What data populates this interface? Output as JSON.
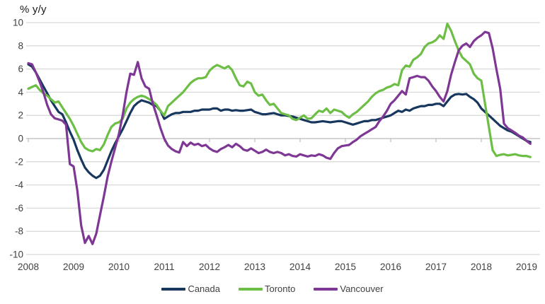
{
  "chart_data": {
    "type": "line",
    "title": "",
    "y_axis_title": "% y/y",
    "frequency": "monthly",
    "start_month": "2008-01",
    "end_month": "2019-02",
    "x_tick_labels": [
      "2008",
      "2009",
      "2010",
      "2011",
      "2012",
      "2013",
      "2014",
      "2015",
      "2016",
      "2017",
      "2018",
      "2019"
    ],
    "y_ticks": [
      10,
      8,
      6,
      4,
      2,
      0,
      -2,
      -4,
      -6,
      -8,
      -10
    ],
    "ylim": [
      -10,
      10
    ],
    "grid": "horizontal",
    "legend_position": "bottom",
    "colors": {
      "grid": "#d9d9d9",
      "axis": "#bfbfbf",
      "tick_text": "#404040",
      "title_text": "#1a1a1a"
    },
    "series": [
      {
        "name": "Canada",
        "color": "#17375e",
        "values": [
          6.4,
          6.2,
          5.7,
          5.1,
          4.5,
          3.9,
          3.3,
          2.8,
          2.3,
          2.1,
          1.4,
          0.6,
          -0.1,
          -1.0,
          -1.8,
          -2.5,
          -2.9,
          -3.2,
          -3.4,
          -3.2,
          -2.7,
          -1.9,
          -1.1,
          -0.4,
          0.2,
          0.8,
          1.5,
          2.2,
          2.8,
          3.1,
          3.3,
          3.2,
          3.1,
          2.9,
          2.8,
          2.4,
          1.7,
          1.9,
          2.1,
          2.2,
          2.2,
          2.3,
          2.3,
          2.3,
          2.4,
          2.4,
          2.5,
          2.5,
          2.5,
          2.6,
          2.6,
          2.4,
          2.5,
          2.5,
          2.4,
          2.45,
          2.4,
          2.4,
          2.45,
          2.5,
          2.3,
          2.2,
          2.1,
          2.1,
          2.15,
          2.2,
          2.1,
          2.0,
          2.0,
          1.95,
          1.9,
          1.8,
          1.7,
          1.6,
          1.5,
          1.4,
          1.4,
          1.45,
          1.5,
          1.45,
          1.4,
          1.45,
          1.5,
          1.5,
          1.4,
          1.3,
          1.2,
          1.3,
          1.4,
          1.5,
          1.5,
          1.6,
          1.6,
          1.7,
          1.8,
          1.9,
          2.0,
          2.2,
          2.4,
          2.3,
          2.5,
          2.4,
          2.6,
          2.7,
          2.8,
          2.8,
          2.9,
          2.9,
          3.0,
          3.0,
          2.8,
          3.2,
          3.6,
          3.8,
          3.85,
          3.8,
          3.85,
          3.6,
          3.4,
          3.1,
          2.6,
          2.3,
          2.0,
          1.7,
          1.4,
          1.1,
          0.9,
          0.7,
          0.6,
          0.4,
          0.2,
          0.0,
          -0.2,
          -0.3
        ]
      },
      {
        "name": "Toronto",
        "color": "#6cbe45",
        "values": [
          4.3,
          4.45,
          4.6,
          4.2,
          3.9,
          3.7,
          3.4,
          3.1,
          3.2,
          2.7,
          2.2,
          1.7,
          1.1,
          0.4,
          -0.3,
          -0.8,
          -1.0,
          -1.1,
          -0.9,
          -1.0,
          -0.5,
          0.3,
          1.0,
          1.3,
          1.4,
          1.7,
          2.6,
          3.1,
          3.4,
          3.6,
          3.7,
          3.6,
          3.4,
          3.2,
          2.9,
          2.4,
          2.0,
          2.8,
          3.1,
          3.4,
          3.7,
          4.0,
          4.4,
          4.8,
          5.05,
          5.2,
          5.2,
          5.3,
          5.85,
          6.15,
          6.35,
          6.2,
          6.05,
          6.25,
          5.9,
          5.2,
          4.6,
          4.5,
          4.9,
          4.75,
          4.0,
          3.7,
          3.8,
          3.3,
          2.9,
          3.0,
          2.6,
          2.2,
          2.1,
          2.0,
          1.7,
          1.6,
          1.8,
          2.0,
          1.7,
          1.75,
          2.1,
          2.4,
          2.3,
          2.6,
          2.2,
          2.5,
          2.4,
          2.3,
          2.0,
          1.8,
          2.1,
          2.3,
          2.6,
          2.9,
          3.2,
          3.6,
          3.9,
          4.1,
          4.2,
          4.4,
          4.5,
          4.7,
          4.6,
          5.9,
          6.3,
          6.2,
          6.8,
          7.0,
          7.3,
          7.9,
          8.2,
          8.3,
          8.5,
          8.9,
          8.6,
          9.9,
          9.3,
          8.4,
          7.6,
          7.0,
          6.7,
          6.4,
          5.6,
          5.2,
          5.0,
          3.0,
          1.0,
          -1.0,
          -1.5,
          -1.4,
          -1.35,
          -1.45,
          -1.4,
          -1.35,
          -1.45,
          -1.5,
          -1.5,
          -1.6
        ]
      },
      {
        "name": "Vancouver",
        "color": "#7e3794",
        "values": [
          6.5,
          6.4,
          5.7,
          4.9,
          4.0,
          2.9,
          2.1,
          1.75,
          1.65,
          1.55,
          1.2,
          -2.2,
          -2.4,
          -4.5,
          -7.5,
          -9.0,
          -8.4,
          -9.1,
          -8.2,
          -6.6,
          -5.0,
          -3.3,
          -2.0,
          -0.8,
          0.4,
          2.0,
          4.0,
          5.6,
          5.5,
          6.6,
          5.2,
          4.5,
          4.3,
          3.0,
          2.0,
          0.9,
          0.0,
          -0.6,
          -0.9,
          -1.1,
          -1.2,
          -0.3,
          -0.65,
          -0.35,
          -0.55,
          -0.45,
          -0.65,
          -0.55,
          -0.85,
          -1.05,
          -1.15,
          -0.9,
          -0.75,
          -0.55,
          -0.75,
          -0.45,
          -0.65,
          -0.95,
          -1.05,
          -0.85,
          -1.05,
          -1.25,
          -1.15,
          -0.95,
          -1.15,
          -1.25,
          -1.15,
          -1.25,
          -1.45,
          -1.35,
          -1.5,
          -1.55,
          -1.35,
          -1.45,
          -1.55,
          -1.45,
          -1.5,
          -1.35,
          -1.45,
          -1.65,
          -1.75,
          -1.25,
          -0.85,
          -0.65,
          -0.6,
          -0.55,
          -0.3,
          -0.1,
          0.2,
          0.4,
          0.6,
          0.8,
          1.0,
          1.5,
          1.9,
          2.4,
          3.0,
          3.3,
          3.7,
          4.1,
          3.8,
          5.2,
          5.3,
          5.4,
          5.3,
          5.3,
          5.0,
          4.5,
          4.1,
          3.6,
          3.2,
          4.1,
          5.5,
          6.6,
          7.6,
          8.0,
          8.2,
          7.9,
          8.4,
          8.7,
          8.9,
          9.2,
          9.1,
          7.8,
          6.0,
          4.3,
          1.3,
          0.9,
          0.7,
          0.5,
          0.25,
          0.1,
          -0.2,
          -0.45
        ]
      }
    ],
    "legend": [
      {
        "label": "Canada"
      },
      {
        "label": "Toronto"
      },
      {
        "label": "Vancouver"
      }
    ]
  }
}
